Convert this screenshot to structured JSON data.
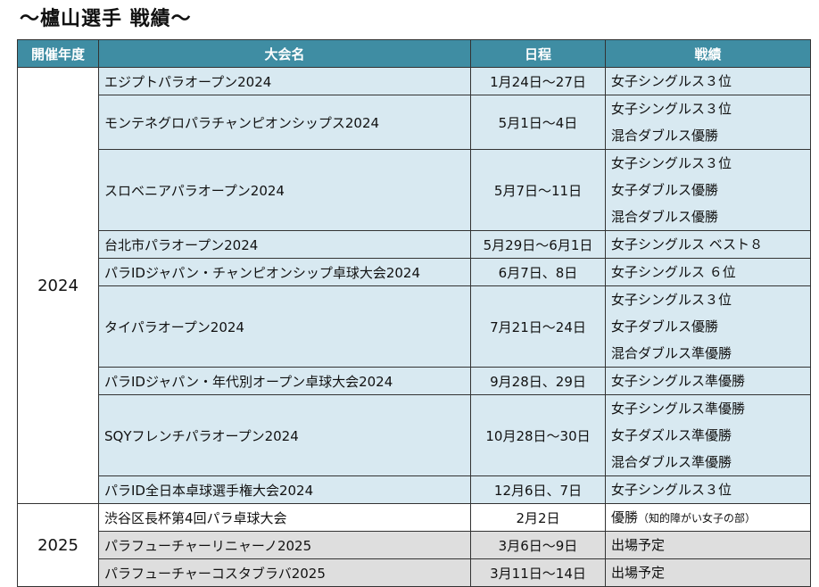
{
  "title": "～櫨山選手 戦績～",
  "headers": [
    "開催年度",
    "大会名",
    "日程",
    "戦績"
  ],
  "years": [
    "2024",
    "2025"
  ],
  "rows": [
    {
      "event": "エジプトパラオープン2024",
      "schedule": "1月24日～27日",
      "results": [
        "女子シングルス３位"
      ]
    },
    {
      "event": "モンテネグロパラチャンピオンシップス2024",
      "schedule": "5月1日～4日",
      "results": [
        "女子シングルス３位",
        "混合ダブルス優勝"
      ]
    },
    {
      "event": "スロベニアパラオープン2024",
      "schedule": "5月7日～11日",
      "results": [
        "女子シングルス３位",
        "女子ダブルス優勝",
        "混合ダブルス優勝"
      ]
    },
    {
      "event": "台北市パラオープン2024",
      "schedule": "5月29日～6月1日",
      "results": [
        "女子シングルス ベスト８"
      ]
    },
    {
      "event": "パラIDジャパン・チャンピオンシップ卓球大会2024",
      "schedule": "6月7日、8日",
      "results": [
        "女子シングルス ６位"
      ]
    },
    {
      "event": "タイパラオープン2024",
      "schedule": "7月21日～24日",
      "results": [
        "女子シングルス３位",
        "女子ダブルス優勝",
        "混合ダブルス準優勝"
      ]
    },
    {
      "event": "パラIDジャパン・年代別オープン卓球大会2024",
      "schedule": "9月28日、29日",
      "results": [
        "女子シングルス準優勝"
      ]
    },
    {
      "event": "SQYフレンチパラオープン2024",
      "schedule": "10月28日～30日",
      "results": [
        "女子シングルス準優勝",
        "女子ダズルス準優勝",
        "混合ダブルス準優勝"
      ]
    },
    {
      "event": "パラID全日本卓球選手権大会2024",
      "schedule": "12月6日、7日",
      "results": [
        "女子シングルス３位"
      ]
    },
    {
      "event": "渋谷区長杯第4回パラ卓球大会",
      "schedule": "2月2日",
      "result_main": "優勝",
      "result_note": "（知的障がい女子の部）"
    },
    {
      "event": "パラフューチャーリニャーノ2025",
      "schedule": "3月6日～9日",
      "results": [
        "出場予定"
      ]
    },
    {
      "event": "パラフューチャーコスタブラバ2025",
      "schedule": "3月11日～14日",
      "results": [
        "出場予定"
      ]
    }
  ],
  "colors": {
    "header": "#3f8da3",
    "row2024": "#d8e9f1",
    "planned": "#dedede"
  }
}
